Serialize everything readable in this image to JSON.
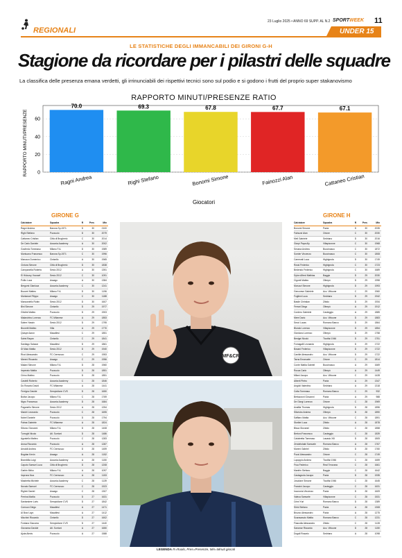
{
  "header": {
    "section": "REGIONALI",
    "date_line": "23 Luglio 2025 • ANNO 69 SUPP. AL N.29",
    "brand": "SPORTWEEK",
    "page_number": "11",
    "badge": "UNDER 15"
  },
  "article": {
    "kicker": "LE STATISTICHE DEGLI IMMANCABILI DEI GIRONI G-H",
    "headline": "Stagione da ricordare per i pilastri delle squadre",
    "subhead": "La classifica delle presenza emana verdetti, gli irrinunciabili dei rispettivi tecnici sono sul podio e si godono i frutti del proprio super stakanovismo"
  },
  "chart_data": {
    "type": "bar",
    "title": "RAPPORTO MINUTI/PRESENZE RATIO",
    "xlabel": "Giocatori",
    "ylabel": "RAPPORTO MINUTI/PRESENZE",
    "categories": [
      "Ragni Andrea",
      "Righi Stefano",
      "Bonomi Simone",
      "Fainozzi Alan",
      "Cattaneo Cristian"
    ],
    "values": [
      70.0,
      69.3,
      67.8,
      67.7,
      67.1
    ],
    "value_labels": [
      "70.0",
      "69.3",
      "67.8",
      "67.7",
      "67.1"
    ],
    "colors": [
      "#1f8ef1",
      "#2fb84a",
      "#e8d52a",
      "#e02525",
      "#f39a2a"
    ],
    "ylim": [
      0,
      75
    ],
    "yticks": [
      "0",
      "20",
      "40",
      "60"
    ],
    "grid": true
  },
  "girone_g": {
    "title": "GIRONE G",
    "headers": [
      "Calciatore",
      "Squadra",
      "R",
      "Pres",
      "Min"
    ],
    "rows": [
      [
        "Ragni Andrea",
        "Barona Sp.1971",
        "D",
        "30",
        "2100"
      ],
      [
        "Righi Stefano",
        "Pozzuolo",
        "D",
        "30",
        "2079"
      ],
      [
        "Cattaneo Cristian",
        "Città di Brugherio",
        "C",
        "30",
        "2014"
      ],
      [
        "De Carlo Daniele",
        "Ausonia Academy",
        "A",
        "30",
        "2002"
      ],
      [
        "Gosferdo Tommaso",
        "Milano F.A.",
        "D",
        "30",
        "1989"
      ],
      [
        "Montuano Francesco",
        "Barona Sp.1971",
        "C",
        "30",
        "1996"
      ],
      [
        "Marozzo Domenico",
        "Cinisello",
        "A",
        "30",
        "1965"
      ],
      [
        "Cintura Simone",
        "Città di Brugherio",
        "D",
        "30",
        "1838"
      ],
      [
        "Campanella Roberto",
        "Sesto 2012",
        "A",
        "30",
        "1391"
      ],
      [
        "El Hidouvy Youssef",
        "Sesto 2012",
        "C",
        "30",
        "1091"
      ],
      [
        "Pollio Luca",
        "Assago",
        "A",
        "30",
        "1384"
      ],
      [
        "Bergomi Gianluca",
        "Ausonia Academy",
        "C",
        "30",
        "1241"
      ],
      [
        "Bucceri Matteo",
        "Milano F.A.",
        "D",
        "30",
        "1196"
      ],
      [
        "Montanari Filippo",
        "Assago",
        "C",
        "30",
        "1188"
      ],
      [
        "Mancaniello Robin",
        "Sesto 2012",
        "D",
        "30",
        "1607"
      ],
      [
        "Bini Simone",
        "Cinisello",
        "D",
        "29",
        "1977"
      ],
      [
        "Ghidini Matteo",
        "Pozzuolo",
        "D",
        "29",
        "1903"
      ],
      [
        "Malandrino Lorenzo",
        "FC Milanese",
        "A",
        "29",
        "1853"
      ],
      [
        "Salem Yassin",
        "Sesto 2012",
        "D",
        "29",
        "1795"
      ],
      [
        "Brunetti Matteo",
        "Villa",
        "A",
        "29",
        "1770"
      ],
      [
        "Quispe Aaron",
        "Macallesi",
        "C",
        "29",
        "1851"
      ],
      [
        "Salmi Rayan",
        "Cinisello",
        "C",
        "29",
        "1841"
      ],
      [
        "Santiago Salazar",
        "Macallesi",
        "D",
        "29",
        "1861"
      ],
      [
        "Di Maio Mattia",
        "Sesto 2012",
        "D",
        "29",
        "1940"
      ],
      [
        "Ricci Alessandro",
        "FC Cermusco",
        "C",
        "29",
        "1953"
      ],
      [
        "Mereni Riccardo",
        "Assago",
        "C",
        "29",
        "1956"
      ],
      [
        "Malani Simone",
        "Milano F.A.",
        "D",
        "28",
        "1960"
      ],
      [
        "Imperato Mattia",
        "Pozzuolo",
        "D",
        "28",
        "1851"
      ],
      [
        "Cirino Matteo",
        "Pozzuolo",
        "D",
        "28",
        "1851"
      ],
      [
        "Castelli Roberto",
        "Ausonia Academy",
        "C",
        "28",
        "1846"
      ],
      [
        "Do Rosario David",
        "FC Milanese",
        "A",
        "28",
        "1441"
      ],
      [
        "Ferrigno Davide",
        "Sempiolione CVS",
        "D",
        "28",
        "1650"
      ],
      [
        "Buttar Jacopo",
        "Milano F.A.",
        "C",
        "28",
        "1769"
      ],
      [
        "Nigro Francesco",
        "Ausonia Academy",
        "D",
        "28",
        "1684"
      ],
      [
        "Paganello Simone",
        "Sesto 2012",
        "A",
        "28",
        "1254"
      ],
      [
        "Marchi Leonardo",
        "Pozzuolo",
        "C",
        "28",
        "1695"
      ],
      [
        "Nobel Daniele",
        "Pozzuolo",
        "D",
        "28",
        "1794"
      ],
      [
        "Palma Gabriele",
        "FC Milanese",
        "A",
        "28",
        "1824"
      ],
      [
        "Sibono Giovanni",
        "Milano F.A.",
        "D",
        "28",
        "1408"
      ],
      [
        "Turroghi Nicolo",
        "Atl. Sorrioni",
        "D",
        "28",
        "1486"
      ],
      [
        "Agostello Matteo",
        "Pozzuolo",
        "C",
        "28",
        "1283"
      ],
      [
        "Arosa Riccardo",
        "Pozzuolo",
        "A",
        "28",
        "1287"
      ],
      [
        "Arnaldi Andrea",
        "FC Cermusco",
        "D",
        "28",
        "1459"
      ],
      [
        "Bogdan Kevin",
        "Assago",
        "A",
        "28",
        "1152"
      ],
      [
        "Brambilla Luigi",
        "Ausonia Academy",
        "A",
        "28",
        "1150"
      ],
      [
        "Caputo Samuel Luca",
        "Città di Brugherio",
        "D",
        "28",
        "1208"
      ],
      [
        "Garbin Mirko",
        "Milano F.A.",
        "A",
        "28",
        "1097"
      ],
      [
        "Improna Noa",
        "FC Cermusco",
        "A",
        "28",
        "1153"
      ],
      [
        "Mastretta Michele",
        "Ausonia Academy",
        "C",
        "28",
        "1139"
      ],
      [
        "Novato Samuel",
        "FC Cermusco",
        "C",
        "28",
        "1923"
      ],
      [
        "Righini Daniel",
        "Assago",
        "C",
        "28",
        "1307"
      ],
      [
        "Perrina Mattia",
        "Pozzuolo",
        "D",
        "27",
        "1631"
      ],
      [
        "Santarsiere Loris",
        "Sempiolione CVS",
        "D",
        "27",
        "1842"
      ],
      [
        "Cornuzo Diego",
        "Macallesi",
        "A",
        "27",
        "1471"
      ],
      [
        "Al Bow Layo",
        "Macallesi",
        "A",
        "27",
        "1412"
      ],
      [
        "Micchini Riccardo",
        "Cinisello",
        "D",
        "27",
        "1602"
      ],
      [
        "Fontana Giacomo",
        "Sempiolione CVS",
        "D",
        "27",
        "1440"
      ],
      [
        "Giovanna Davide",
        "Atl. Sorrioni",
        "A",
        "27",
        "1650"
      ],
      [
        "Ajuta Alexis",
        "Pozzuolo",
        "A",
        "27",
        "1588"
      ]
    ]
  },
  "girone_h": {
    "title": "GIRONE H",
    "headers": [
      "Calciatore",
      "Squadra",
      "R",
      "Pres",
      "Min"
    ],
    "rows": [
      [
        "Bonomi Simone",
        "Pavia",
        "D",
        "30",
        "2035"
      ],
      [
        "Fainozzi Alan",
        "Orione",
        "C",
        "30",
        "2030"
      ],
      [
        "Meli Gabriele",
        "Sedriano",
        "D",
        "30",
        "2016"
      ],
      [
        "Giorpi Papa Aly",
        "Villapizzone",
        "C",
        "30",
        "1968"
      ],
      [
        "Sexana Andrea",
        "Buccinasco",
        "C",
        "30",
        "1872"
      ],
      [
        "Somier Vincenzo",
        "Buccinasco",
        "C",
        "30",
        "1808"
      ],
      [
        "Carnevali Luca",
        "Highignola",
        "D",
        "30",
        "1749"
      ],
      [
        "Rossi Federico",
        "Highignola",
        "C",
        "30",
        "1723"
      ],
      [
        "Bedendo Federico",
        "Highignola",
        "C",
        "30",
        "1689"
      ],
      [
        "Dylon Alfred Mathias",
        "Baggio",
        "D",
        "29",
        "2030"
      ],
      [
        "Cigonti Matteo",
        "Oltrepò",
        "D",
        "29",
        "1998"
      ],
      [
        "Moruzzi Simone",
        "Highignola",
        "D",
        "29",
        "1993"
      ],
      [
        "Genovese Gabriele",
        "Acc. Vittuone",
        "C",
        "29",
        "1960"
      ],
      [
        "Foglieni Luca",
        "Sedriano",
        "D",
        "29",
        "1942"
      ],
      [
        "Basile Christian",
        "Zibido",
        "D",
        "29",
        "1934"
      ],
      [
        "Ferrari Diego",
        "Oltrepò",
        "A",
        "29",
        "1912"
      ],
      [
        "Cordero Gabriele",
        "Casteggio",
        "A",
        "29",
        "1885"
      ],
      [
        "Mere Dario",
        "Acc. Vittuone",
        "D",
        "29",
        "1883"
      ],
      [
        "Secci Lucas",
        "Romano Banco",
        "D",
        "29",
        "1864"
      ],
      [
        "Blundo Lorenzo",
        "Villapizzone",
        "D",
        "29",
        "1854"
      ],
      [
        "Giordano Lorenzo",
        "Oltrepò",
        "D",
        "29",
        "1758"
      ],
      [
        "Benigni Nicolò",
        "Ticotlisi 1946",
        "D",
        "29",
        "1751"
      ],
      [
        "Fumagalli Leonardo",
        "Highignola",
        "D",
        "29",
        "1722"
      ],
      [
        "Bosani Federico",
        "Villapizzone",
        "D",
        "29",
        "1722"
      ],
      [
        "Cantile Alessandro",
        "Acc. Vittuone",
        "D",
        "29",
        "1722"
      ],
      [
        "Tarna Emanuele",
        "Orione",
        "C",
        "29",
        "1814"
      ],
      [
        "Conte Mattia Gabriel",
        "Buccinasco",
        "A",
        "29",
        "1669"
      ],
      [
        "Rocca Carlo",
        "Oltrepò",
        "A",
        "29",
        "1449"
      ],
      [
        "Milani Jacopo",
        "Acc. Vittuone",
        "C",
        "29",
        "1428"
      ],
      [
        "Alberti Pietro",
        "Pavia",
        "A",
        "29",
        "1347"
      ],
      [
        "Angioli Valentino",
        "Sedriano",
        "A",
        "29",
        "1318"
      ],
      [
        "Cotta Tommaso",
        "Romano Banco",
        "C",
        "29",
        "932"
      ],
      [
        "Bertazzoni Giovanni",
        "Pavia",
        "A",
        "29",
        "988"
      ],
      [
        "De Giorgi Lorenzo",
        "Orione",
        "C",
        "28",
        "1969"
      ],
      [
        "Availlia Thomas",
        "Highignola",
        "D",
        "28",
        "1896"
      ],
      [
        "Silvestro Andrea",
        "Oltrepò",
        "D",
        "28",
        "1890"
      ],
      [
        "Saffiaro Mattia",
        "Acc. Vittuone",
        "C",
        "28",
        "1891"
      ],
      [
        "Storlimi Luca",
        "Zibido",
        "A",
        "28",
        "1878"
      ],
      [
        "Bisca Giovanni",
        "Zibido",
        "C",
        "28",
        "1858"
      ],
      [
        "Bertoni Francesco",
        "Casteggio",
        "C",
        "28",
        "1839"
      ],
      [
        "Calabretta Tommaso",
        "Lavasio XIII",
        "D",
        "28",
        "1805"
      ],
      [
        "Zendelshabi Samuele",
        "Romano Banco",
        "A",
        "28",
        "1767"
      ],
      [
        "Moreni Gabriel",
        "Zibido",
        "D",
        "28",
        "1760"
      ],
      [
        "Pozzi Alessandro",
        "Orione",
        "C",
        "28",
        "1749"
      ],
      [
        "Lupoppio Andrea",
        "Ticotlisi 1946",
        "C",
        "28",
        "1659"
      ],
      [
        "Frua Federico",
        "Real Trezzano",
        "C",
        "28",
        "1661"
      ],
      [
        "Manfrin Stefano",
        "Baggio",
        "C",
        "28",
        "1642"
      ],
      [
        "Castagnola Jacopo",
        "Pavia",
        "D",
        "28",
        "1935"
      ],
      [
        "Jovalone Simone",
        "Ticotlisi 1946",
        "C",
        "28",
        "1645"
      ],
      [
        "Franzini Jacopo",
        "Casteggio",
        "C",
        "28",
        "1631"
      ],
      [
        "Incoronia Vincenzo",
        "Pavia",
        "D",
        "28",
        "1609"
      ],
      [
        "Valeca Samuele",
        "Villapizzone",
        "C",
        "28",
        "1531"
      ],
      [
        "Crimi Yuri",
        "Romano Banco",
        "D",
        "28",
        "1389"
      ],
      [
        "Sirini Stefano",
        "Pavia",
        "A",
        "28",
        "1308"
      ],
      [
        "Brozzo Alessandro",
        "Pavia",
        "A",
        "28",
        "1275"
      ],
      [
        "Scaravascio Mattia",
        "Romano Banco",
        "C",
        "28",
        "1231"
      ],
      [
        "Fiascolla Alessandro",
        "Zibido",
        "C",
        "28",
        "1128"
      ],
      [
        "Sanvose Riccardo",
        "Acc. Vittuone",
        "D",
        "28",
        "1150"
      ],
      [
        "Dogali Rosario",
        "Sedriano",
        "A",
        "28",
        "1098"
      ]
    ]
  },
  "legend": {
    "label": "LEGENDA",
    "text": "R=Ruolo, Pres=Presenze, Min=Minuti giocati"
  },
  "photos": {
    "jersey_text": "MF&CR"
  }
}
